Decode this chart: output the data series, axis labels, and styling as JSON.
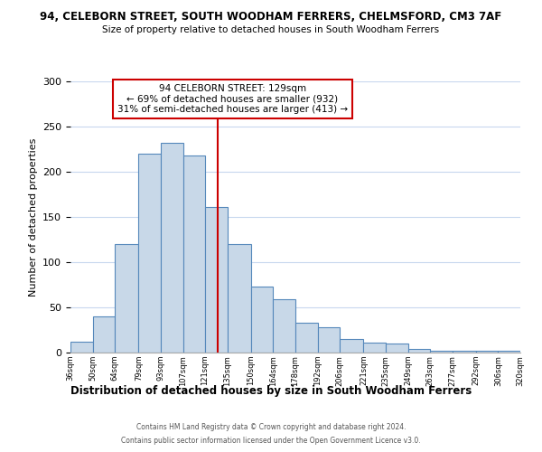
{
  "title1": "94, CELEBORN STREET, SOUTH WOODHAM FERRERS, CHELMSFORD, CM3 7AF",
  "title2": "Size of property relative to detached houses in South Woodham Ferrers",
  "xlabel": "Distribution of detached houses by size in South Woodham Ferrers",
  "ylabel": "Number of detached properties",
  "bin_edges": [
    36,
    50,
    64,
    79,
    93,
    107,
    121,
    135,
    150,
    164,
    178,
    192,
    206,
    221,
    235,
    249,
    263,
    277,
    292,
    306,
    320
  ],
  "bar_heights": [
    12,
    40,
    120,
    220,
    232,
    218,
    161,
    120,
    73,
    59,
    33,
    28,
    15,
    11,
    10,
    4,
    2,
    2,
    2,
    2
  ],
  "bar_color": "#c8d8e8",
  "bar_edge_color": "#5588bb",
  "vline_x": 129,
  "vline_color": "#cc0000",
  "annotation_line1": "94 CELEBORN STREET: 129sqm",
  "annotation_line2": "← 69% of detached houses are smaller (932)",
  "annotation_line3": "31% of semi-detached houses are larger (413) →",
  "annotation_box_edge": "#cc0000",
  "ylim": [
    0,
    300
  ],
  "yticks": [
    0,
    50,
    100,
    150,
    200,
    250,
    300
  ],
  "footer1": "Contains HM Land Registry data © Crown copyright and database right 2024.",
  "footer2": "Contains public sector information licensed under the Open Government Licence v3.0.",
  "bg_color": "#ffffff",
  "grid_color": "#c8d8ee"
}
